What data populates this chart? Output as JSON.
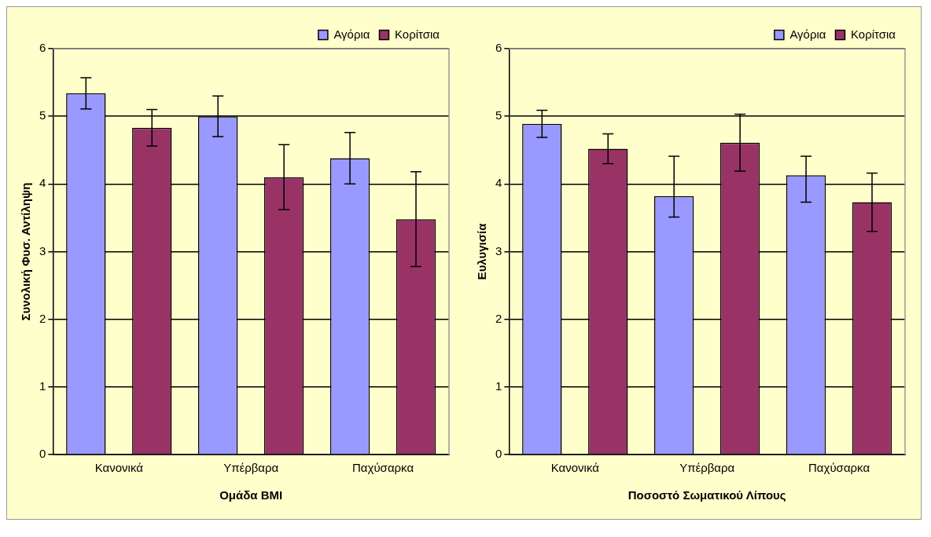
{
  "chart_data": [
    {
      "type": "bar",
      "categories": [
        "Κανονικά",
        "Υπέρβαρα",
        "Παχύσαρκα"
      ],
      "xlabel": "Ομάδα BMI",
      "ylabel": "Συνολική Φυσ. Αντίληψη",
      "ylim": [
        0,
        6
      ],
      "yticks": [
        0,
        1,
        2,
        3,
        4,
        5,
        6
      ],
      "grid": "y",
      "legend": "top right",
      "series": [
        {
          "name": "Αγόρια",
          "color": "#9999ff",
          "values": [
            5.34,
            5.0,
            4.38
          ],
          "errors": [
            0.23,
            0.3,
            0.38
          ]
        },
        {
          "name": "Κορίτσια",
          "color": "#993366",
          "values": [
            4.83,
            4.1,
            3.48
          ],
          "errors": [
            0.27,
            0.48,
            0.7
          ]
        }
      ]
    },
    {
      "type": "bar",
      "categories": [
        "Κανονικά",
        "Υπέρβαρα",
        "Παχύσαρκα"
      ],
      "xlabel": "Ποσοστό Σωματικού Λίπους",
      "ylabel": "Ευλυγισία",
      "ylim": [
        0,
        6
      ],
      "yticks": [
        0,
        1,
        2,
        3,
        4,
        5,
        6
      ],
      "grid": "y",
      "legend": "top right",
      "series": [
        {
          "name": "Αγόρια",
          "color": "#9999ff",
          "values": [
            4.89,
            3.82,
            4.13
          ],
          "errors": [
            0.2,
            [
              3.51,
              4.41
            ],
            [
              3.73,
              4.41
            ]
          ]
        },
        {
          "name": "Κορίτσια",
          "color": "#993366",
          "values": [
            4.52,
            4.61,
            3.73
          ],
          "errors": [
            0.22,
            0.42,
            0.43
          ]
        }
      ]
    }
  ]
}
